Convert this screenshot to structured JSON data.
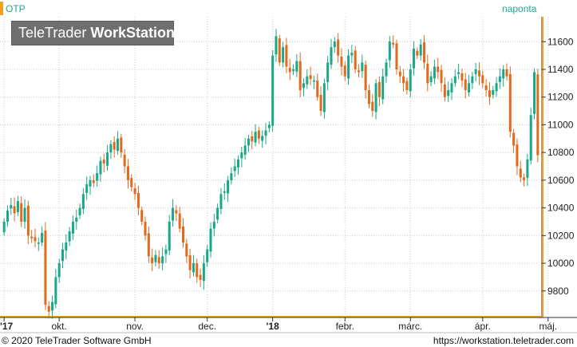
{
  "header": {
    "ticker": "OTP",
    "period": "naponta"
  },
  "watermark": {
    "brand_regular": "TeleTrader ",
    "brand_bold": "WorkStation"
  },
  "footer": {
    "copyright": "© 2020 TeleTrader Software GmbH",
    "url": "https://workstation.teletrader.com"
  },
  "colors": {
    "up": "#1aa889",
    "down": "#e06a1e",
    "accent": "#f0a020",
    "grid": "#cccccc"
  },
  "chart_data": {
    "type": "candlestick",
    "ylim": [
      9620,
      11780
    ],
    "y_ticks": [
      9800,
      10000,
      10200,
      10400,
      10600,
      10800,
      11000,
      11200,
      11400,
      11600
    ],
    "x_labels": [
      {
        "label": "'17",
        "index": 0
      },
      {
        "label": "okt.",
        "index": 16
      },
      {
        "label": "nov.",
        "index": 38
      },
      {
        "label": "dec.",
        "index": 59
      },
      {
        "label": "'18",
        "index": 78
      },
      {
        "label": "febr.",
        "index": 99
      },
      {
        "label": "márc.",
        "index": 118
      },
      {
        "label": "ápr.",
        "index": 139
      },
      {
        "label": "máj.",
        "index": 158
      }
    ],
    "closes": [
      10300,
      10380,
      10420,
      10360,
      10450,
      10300,
      10400,
      10200,
      10180,
      10160,
      10150,
      10220,
      9700,
      9650,
      9720,
      9900,
      10000,
      10100,
      10150,
      10230,
      10300,
      10330,
      10400,
      10500,
      10570,
      10600,
      10580,
      10650,
      10740,
      10720,
      10800,
      10860,
      10820,
      10900,
      10800,
      10700,
      10600,
      10550,
      10500,
      10400,
      10300,
      10200,
      10050,
      10000,
      10060,
      10000,
      10050,
      10100,
      10300,
      10400,
      10360,
      10250,
      10150,
      10050,
      9950,
      10000,
      9900,
      9880,
      10000,
      10100,
      10250,
      10300,
      10400,
      10500,
      10520,
      10600,
      10650,
      10700,
      10750,
      10800,
      10850,
      10900,
      10880,
      10950,
      10900,
      10920,
      10960,
      11000,
      11500,
      11640,
      11450,
      11560,
      11420,
      11380,
      11400,
      11460,
      11250,
      11300,
      11350,
      11330,
      11320,
      11200,
      11100,
      11300,
      11450,
      11560,
      11600,
      11500,
      11420,
      11350,
      11500,
      11520,
      11400,
      11380,
      11450,
      11250,
      11150,
      11100,
      11300,
      11200,
      11350,
      11450,
      11600,
      11580,
      11400,
      11350,
      11300,
      11250,
      11400,
      11550,
      11500,
      11580,
      11450,
      11300,
      11350,
      11420,
      11380,
      11300,
      11200,
      11250,
      11300,
      11350,
      11380,
      11320,
      11250,
      11300,
      11350,
      11400,
      11350,
      11300,
      11250,
      11200,
      11250,
      11300,
      11350,
      11400,
      11350,
      10950,
      10850,
      10700,
      10620,
      10600,
      10750,
      11070,
      11380,
      10780
    ]
  }
}
